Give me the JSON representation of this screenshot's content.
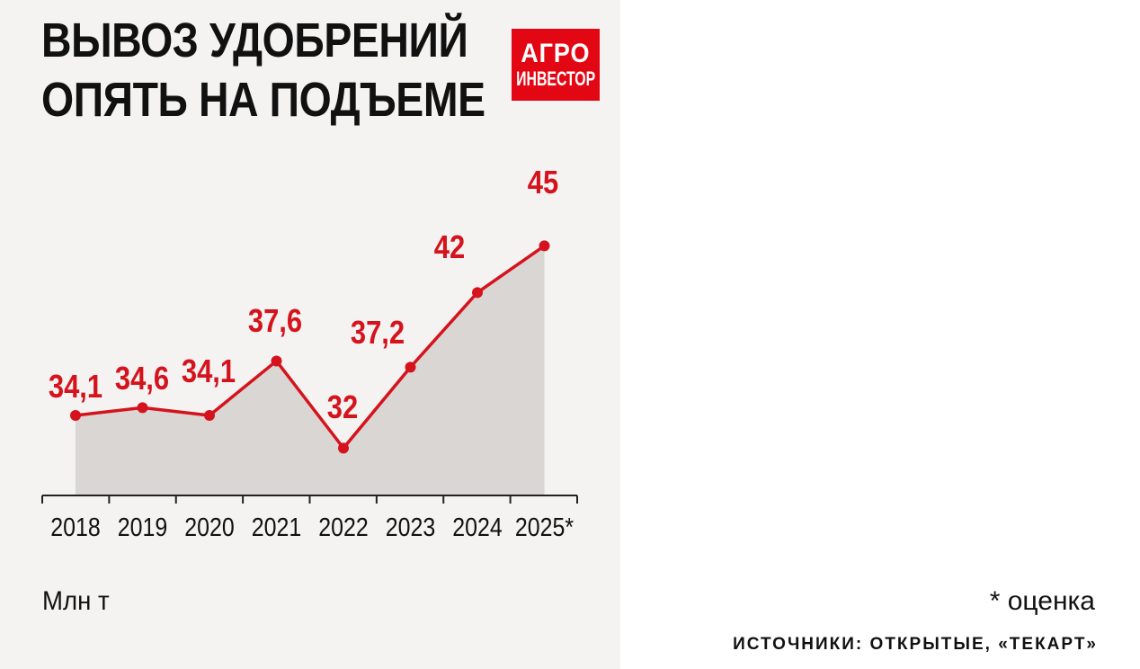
{
  "title_lines": [
    "ВЫВОЗ УДОБРЕНИЙ",
    "ОПЯТЬ НА ПОДЪЕМЕ"
  ],
  "logo": {
    "line1": "АГРО",
    "line2": "ИНВЕСТОР"
  },
  "unit_label": "Млн т",
  "note": "* оценка",
  "source": "ИСТОЧНИКИ: ОТКРЫТЫЕ, «ТЕКАРТ»",
  "colors": {
    "line": "#d5131d",
    "area": "#d9d6d3",
    "text": "#111111",
    "background": "#f4f3f2",
    "logo": "#e30613"
  },
  "chart_data": {
    "type": "area",
    "title": "ВЫВОЗ УДОБРЕНИЙ ОПЯТЬ НА ПОДЪЕМЕ",
    "ylabel": "Млн т",
    "categories": [
      "2018",
      "2019",
      "2020",
      "2021",
      "2022",
      "2023",
      "2024",
      "2025*"
    ],
    "series": [
      {
        "values": [
          34.1,
          34.6,
          34.1,
          37.6,
          32,
          37.2,
          42,
          45
        ],
        "labels": [
          "34,1",
          "34,6",
          "34,1",
          "37,6",
          "32",
          "37,2",
          "42",
          "45"
        ]
      }
    ],
    "grid": false,
    "legend": "none"
  }
}
